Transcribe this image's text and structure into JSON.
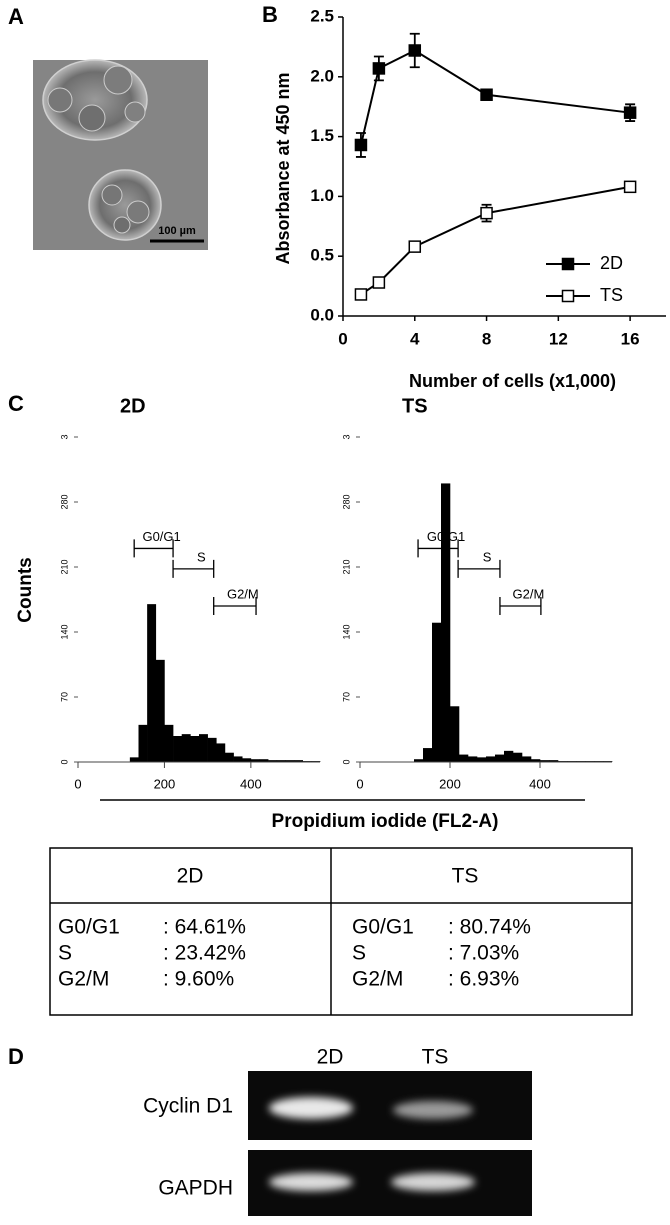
{
  "panel_labels": [
    "A",
    "B",
    "C",
    "D"
  ],
  "panel_a": {
    "scale_bar": "100 µm"
  },
  "chart_data": [
    {
      "type": "line",
      "x_label": "Number of cells (x1,000)",
      "y_label": "Absorbance at 450 nm",
      "x": [
        1,
        2,
        4,
        8,
        16
      ],
      "series": [
        {
          "name": "2D",
          "color": "#000000",
          "marker": "filled-square",
          "values": [
            1.43,
            2.07,
            2.22,
            1.85,
            1.7
          ],
          "errors": [
            0.1,
            0.1,
            0.14,
            0.04,
            0.07
          ]
        },
        {
          "name": "TS",
          "color": "#000000",
          "marker": "open-square",
          "values": [
            0.18,
            0.28,
            0.58,
            0.86,
            1.08
          ],
          "errors": [
            0.02,
            0.03,
            0.04,
            0.07,
            0.03
          ]
        }
      ],
      "xlim": [
        0,
        18
      ],
      "xticks": [
        0,
        4,
        8,
        12,
        16
      ],
      "ylim": [
        0,
        2.5
      ],
      "yticks": [
        {
          "value": 0,
          "label": "0.0"
        },
        0.5,
        {
          "value": 1,
          "label": "1.0"
        },
        1.5,
        {
          "value": 2,
          "label": "2.0"
        },
        2.5
      ],
      "legend": "lower right"
    },
    {
      "type": "histogram",
      "title": "2D",
      "color": "#000000",
      "bins": [
        0,
        20,
        40,
        60,
        80,
        100,
        120,
        140,
        160,
        180,
        200,
        220,
        240,
        260,
        280,
        300,
        320,
        340,
        360,
        380,
        400,
        420,
        440,
        460,
        480,
        500,
        520,
        540,
        560
      ],
      "values": [
        0,
        0,
        0,
        0,
        0,
        0,
        5,
        40,
        170,
        110,
        40,
        28,
        30,
        28,
        30,
        26,
        20,
        10,
        6,
        4,
        3,
        3,
        2,
        2,
        2,
        2,
        1,
        1
      ],
      "gates": [
        {
          "name": "G0/G1",
          "range": [
            130,
            220
          ],
          "level": 230
        },
        {
          "name": "S",
          "range": [
            220,
            314
          ],
          "level": 208
        },
        {
          "name": "G2/M",
          "range": [
            314,
            412
          ],
          "level": 168
        }
      ],
      "xlim": [
        0,
        560
      ],
      "xticks": [
        0,
        200,
        400
      ],
      "ylim": [
        0,
        350
      ],
      "yticks": [
        0,
        70,
        140,
        210,
        280,
        {
          "value": 350,
          "label": "3"
        }
      ]
    },
    {
      "type": "histogram",
      "title": "TS",
      "color": "#000000",
      "bins": [
        0,
        20,
        40,
        60,
        80,
        100,
        120,
        140,
        160,
        180,
        200,
        220,
        240,
        260,
        280,
        300,
        320,
        340,
        360,
        380,
        400,
        420,
        440,
        460,
        480,
        500,
        520,
        540,
        560
      ],
      "values": [
        0,
        0,
        0,
        0,
        0,
        0,
        3,
        15,
        150,
        300,
        60,
        8,
        6,
        5,
        6,
        8,
        12,
        10,
        6,
        3,
        2,
        2,
        1,
        1,
        1,
        1,
        1,
        1
      ],
      "gates": [
        {
          "name": "G0/G1",
          "range": [
            129,
            218
          ],
          "level": 230
        },
        {
          "name": "S",
          "range": [
            218,
            311
          ],
          "level": 208
        },
        {
          "name": "G2/M",
          "range": [
            311,
            402
          ],
          "level": 168
        }
      ],
      "xlim": [
        0,
        560
      ],
      "xticks": [
        0,
        200,
        400
      ],
      "ylim": [
        0,
        350
      ],
      "yticks": [
        0,
        70,
        140,
        210,
        280,
        {
          "value": 350,
          "label": "3"
        }
      ]
    }
  ],
  "panel_c": {
    "x_label": "Propidium iodide (FL2-A)",
    "y_label": "Counts"
  },
  "table": {
    "columns": [
      "2D",
      "TS"
    ],
    "cells": [
      [
        [
          "G0/G1",
          ": 64.61%"
        ],
        [
          "S",
          ": 23.42%"
        ],
        [
          "G2/M",
          ": 9.60%"
        ]
      ],
      [
        [
          "G0/G1",
          ": 80.74%"
        ],
        [
          "S",
          ": 7.03%"
        ],
        [
          "G2/M",
          ": 6.93%"
        ]
      ]
    ]
  },
  "gel": {
    "lanes": [
      "2D",
      "TS"
    ],
    "rows": [
      "Cyclin D1",
      "GAPDH"
    ]
  }
}
